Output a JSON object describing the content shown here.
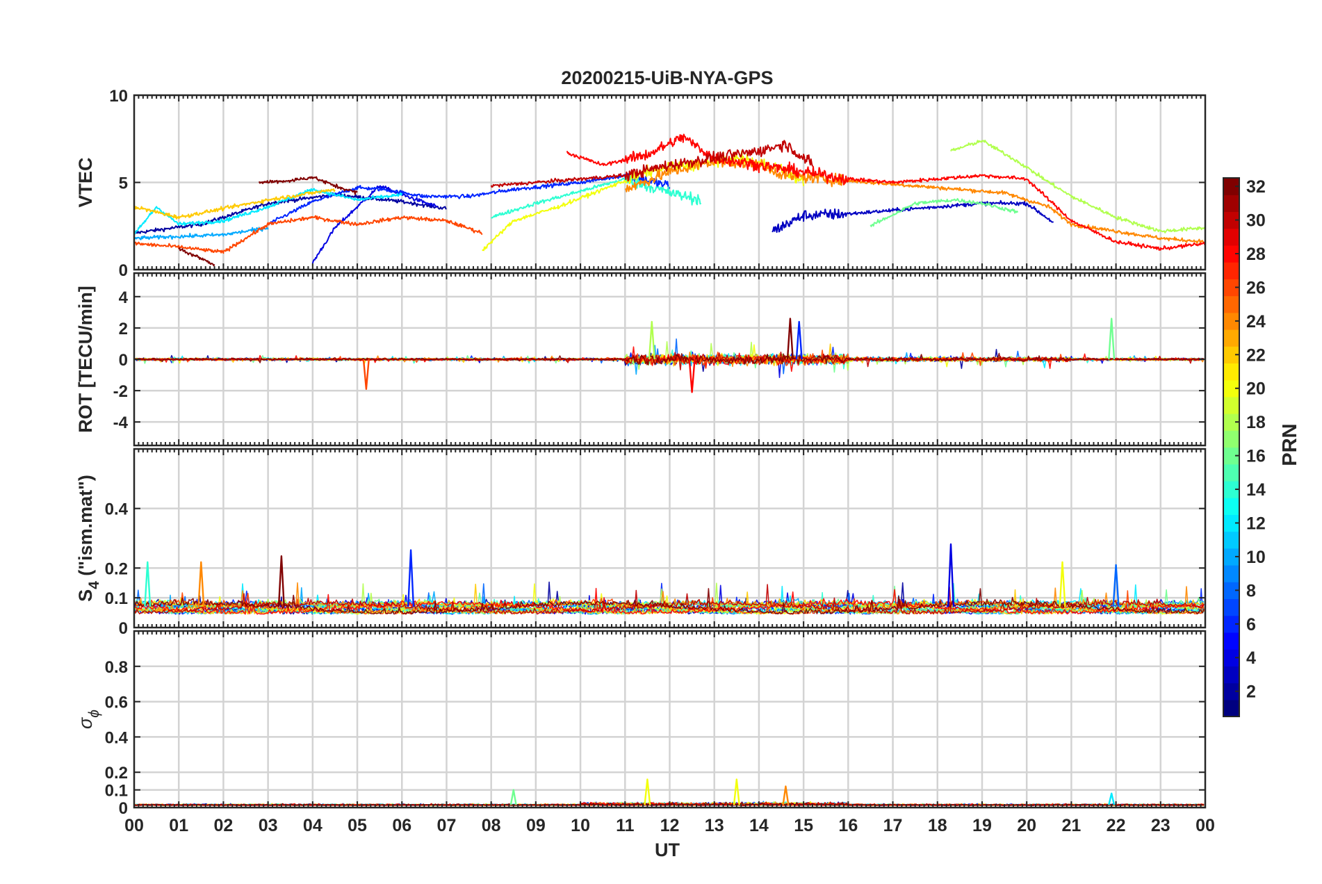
{
  "chart_data": {
    "title": "20200215-UiB-NYA-GPS",
    "type": "line",
    "x_axis": {
      "label": "UT",
      "range": [
        0,
        24
      ],
      "tick_labels": [
        "00",
        "01",
        "02",
        "03",
        "04",
        "05",
        "06",
        "07",
        "08",
        "09",
        "10",
        "11",
        "12",
        "13",
        "14",
        "15",
        "16",
        "17",
        "18",
        "19",
        "20",
        "21",
        "22",
        "23",
        "00"
      ]
    },
    "colorbar": {
      "label": "PRN",
      "range": [
        1,
        32
      ],
      "tick_labels": [
        "2",
        "4",
        "6",
        "8",
        "10",
        "12",
        "14",
        "16",
        "18",
        "20",
        "22",
        "24",
        "26",
        "28",
        "30",
        "32"
      ],
      "colormap": "jet"
    },
    "grid": true,
    "panels": [
      {
        "ylabel": "VTEC",
        "ylim": [
          0,
          10
        ],
        "yticks": [
          "0",
          "5",
          "10"
        ],
        "series": [
          {
            "prn": 2,
            "points": [
              [
                0.0,
                2.1
              ],
              [
                1.5,
                2.6
              ],
              [
                3.0,
                3.8
              ],
              [
                4.5,
                4.3
              ],
              [
                6.0,
                3.9
              ],
              [
                7.0,
                3.5
              ]
            ]
          },
          {
            "prn": 4,
            "points": [
              [
                4.0,
                0.4
              ],
              [
                4.5,
                2.4
              ],
              [
                5.0,
                3.6
              ],
              [
                5.5,
                4.8
              ],
              [
                6.0,
                4.3
              ],
              [
                6.8,
                3.6
              ]
            ]
          },
          {
            "prn": 6,
            "points": [
              [
                3.0,
                2.6
              ],
              [
                4.0,
                3.9
              ],
              [
                5.0,
                4.7
              ],
              [
                5.6,
                4.6
              ],
              [
                6.5,
                4.2
              ],
              [
                7.5,
                4.2
              ],
              [
                8.5,
                4.6
              ],
              [
                10.0,
                5.0
              ],
              [
                11.0,
                5.4
              ],
              [
                12.0,
                4.8
              ]
            ]
          },
          {
            "prn": 3,
            "points": [
              [
                14.3,
                2.2
              ],
              [
                15.0,
                3.1
              ],
              [
                16.0,
                3.2
              ],
              [
                17.0,
                3.4
              ],
              [
                18.0,
                3.6
              ],
              [
                19.0,
                3.8
              ],
              [
                20.0,
                3.8
              ],
              [
                20.6,
                2.7
              ]
            ]
          },
          {
            "prn": 12,
            "points": [
              [
                0.0,
                2.0
              ],
              [
                0.5,
                3.6
              ],
              [
                1.0,
                2.6
              ],
              [
                2.0,
                2.8
              ],
              [
                3.0,
                3.6
              ],
              [
                4.0,
                4.6
              ],
              [
                5.0,
                4.0
              ],
              [
                6.0,
                4.3
              ]
            ]
          },
          {
            "prn": 10,
            "points": [
              [
                0.0,
                1.8
              ],
              [
                2.0,
                2.0
              ],
              [
                3.0,
                2.4
              ]
            ]
          },
          {
            "prn": 14,
            "points": [
              [
                8.0,
                3.0
              ],
              [
                9.0,
                3.8
              ],
              [
                10.0,
                4.5
              ],
              [
                11.0,
                5.2
              ],
              [
                12.0,
                4.4
              ],
              [
                12.7,
                4.0
              ]
            ]
          },
          {
            "prn": 16,
            "points": [
              [
                16.5,
                2.5
              ],
              [
                17.5,
                3.8
              ],
              [
                18.4,
                4.0
              ],
              [
                19.0,
                3.8
              ],
              [
                19.8,
                3.3
              ]
            ]
          },
          {
            "prn": 18,
            "points": [
              [
                18.3,
                6.8
              ],
              [
                19.0,
                7.4
              ],
              [
                19.8,
                6.2
              ],
              [
                20.5,
                5.0
              ],
              [
                21.0,
                4.2
              ],
              [
                22.0,
                3.0
              ],
              [
                23.0,
                2.2
              ],
              [
                24.0,
                2.4
              ]
            ]
          },
          {
            "prn": 20,
            "points": [
              [
                7.8,
                1.1
              ],
              [
                8.5,
                2.8
              ],
              [
                9.5,
                3.6
              ],
              [
                10.5,
                4.6
              ],
              [
                11.5,
                5.6
              ],
              [
                12.5,
                6.0
              ],
              [
                13.5,
                6.4
              ],
              [
                14.5,
                5.8
              ],
              [
                15.0,
                5.0
              ]
            ]
          },
          {
            "prn": 22,
            "points": [
              [
                0.0,
                3.6
              ],
              [
                1.0,
                3.0
              ],
              [
                2.0,
                3.5
              ],
              [
                3.0,
                4.0
              ],
              [
                4.0,
                4.4
              ],
              [
                4.5,
                4.6
              ]
            ]
          },
          {
            "prn": 24,
            "points": [
              [
                11.0,
                4.6
              ],
              [
                12.0,
                5.6
              ],
              [
                13.0,
                6.2
              ],
              [
                14.0,
                6.0
              ],
              [
                14.6,
                5.4
              ],
              [
                15.5,
                5.2
              ],
              [
                16.5,
                5.0
              ],
              [
                17.5,
                4.8
              ],
              [
                18.5,
                4.6
              ],
              [
                19.5,
                4.4
              ],
              [
                20.5,
                3.6
              ],
              [
                21.0,
                2.6
              ],
              [
                22.0,
                2.2
              ],
              [
                23.0,
                1.8
              ],
              [
                24.0,
                1.6
              ]
            ]
          },
          {
            "prn": 26,
            "points": [
              [
                0.0,
                1.5
              ],
              [
                1.0,
                1.3
              ],
              [
                2.0,
                1.0
              ],
              [
                3.0,
                2.6
              ],
              [
                4.0,
                3.0
              ],
              [
                5.0,
                2.6
              ],
              [
                6.0,
                3.0
              ],
              [
                7.0,
                2.8
              ],
              [
                7.8,
                2.1
              ]
            ]
          },
          {
            "prn": 28,
            "points": [
              [
                9.7,
                6.7
              ],
              [
                10.5,
                6.0
              ],
              [
                11.5,
                6.6
              ],
              [
                12.3,
                7.6
              ],
              [
                13.0,
                6.4
              ],
              [
                14.0,
                6.0
              ],
              [
                15.0,
                5.6
              ],
              [
                16.0,
                5.2
              ],
              [
                17.0,
                5.0
              ],
              [
                18.0,
                5.2
              ],
              [
                19.0,
                5.4
              ],
              [
                20.0,
                5.2
              ],
              [
                21.0,
                2.8
              ],
              [
                22.0,
                1.6
              ],
              [
                23.0,
                1.2
              ],
              [
                24.0,
                1.5
              ]
            ]
          },
          {
            "prn": 30,
            "points": [
              [
                8.0,
                4.8
              ],
              [
                9.0,
                5.0
              ],
              [
                10.0,
                5.2
              ],
              [
                11.0,
                5.4
              ],
              [
                12.0,
                6.0
              ],
              [
                13.0,
                6.4
              ],
              [
                14.0,
                6.8
              ],
              [
                14.6,
                7.2
              ],
              [
                15.2,
                6.0
              ]
            ]
          },
          {
            "prn": 32,
            "points": [
              [
                2.8,
                5.0
              ],
              [
                3.5,
                5.1
              ],
              [
                4.0,
                5.3
              ],
              [
                4.5,
                4.8
              ],
              [
                5.0,
                4.4
              ],
              [
                1.0,
                1.2
              ],
              [
                1.8,
                0.3
              ]
            ]
          }
        ]
      },
      {
        "ylabel": "ROT [TECU/min]",
        "ylim": [
          -5.5,
          5.5
        ],
        "yticks": [
          "-4",
          "-2",
          "0",
          "2",
          "4"
        ],
        "highlights": [
          {
            "x": 14.7,
            "y": 2.6,
            "prn": 32
          },
          {
            "x": 14.9,
            "y": 2.4,
            "prn": 6
          },
          {
            "x": 21.9,
            "y": 2.6,
            "prn": 16
          },
          {
            "x": 5.2,
            "y": -1.9,
            "prn": 26
          },
          {
            "x": 12.5,
            "y": -2.1,
            "prn": 28
          },
          {
            "x": 11.6,
            "y": 2.4,
            "prn": 18
          }
        ]
      },
      {
        "ylabel": "S",
        "ylabel_subscript": "4",
        "ylabel_suffix": " (\"ism.mat\")",
        "ylim": [
          0,
          0.6
        ],
        "yticks": [
          "0",
          "0.1",
          "0.2",
          "0.4"
        ],
        "highlights": [
          {
            "x": 3.3,
            "y": 0.24,
            "prn": 32
          },
          {
            "x": 6.2,
            "y": 0.26,
            "prn": 6
          },
          {
            "x": 18.3,
            "y": 0.28,
            "prn": 4
          },
          {
            "x": 1.5,
            "y": 0.22,
            "prn": 24
          },
          {
            "x": 0.3,
            "y": 0.22,
            "prn": 14
          },
          {
            "x": 20.8,
            "y": 0.22,
            "prn": 20
          },
          {
            "x": 22.0,
            "y": 0.21,
            "prn": 8
          }
        ]
      },
      {
        "ylabel": "σ",
        "ylabel_subscript": "ϕ",
        "ylim": [
          0,
          1.0
        ],
        "yticks": [
          "0",
          "0.1",
          "0.2",
          "0.4",
          "0.6",
          "0.8"
        ],
        "highlights": [
          {
            "x": 8.5,
            "y": 0.1,
            "prn": 16
          },
          {
            "x": 11.5,
            "y": 0.16,
            "prn": 20
          },
          {
            "x": 13.5,
            "y": 0.16,
            "prn": 20
          },
          {
            "x": 14.6,
            "y": 0.12,
            "prn": 24
          },
          {
            "x": 21.9,
            "y": 0.08,
            "prn": 12
          }
        ]
      }
    ]
  }
}
